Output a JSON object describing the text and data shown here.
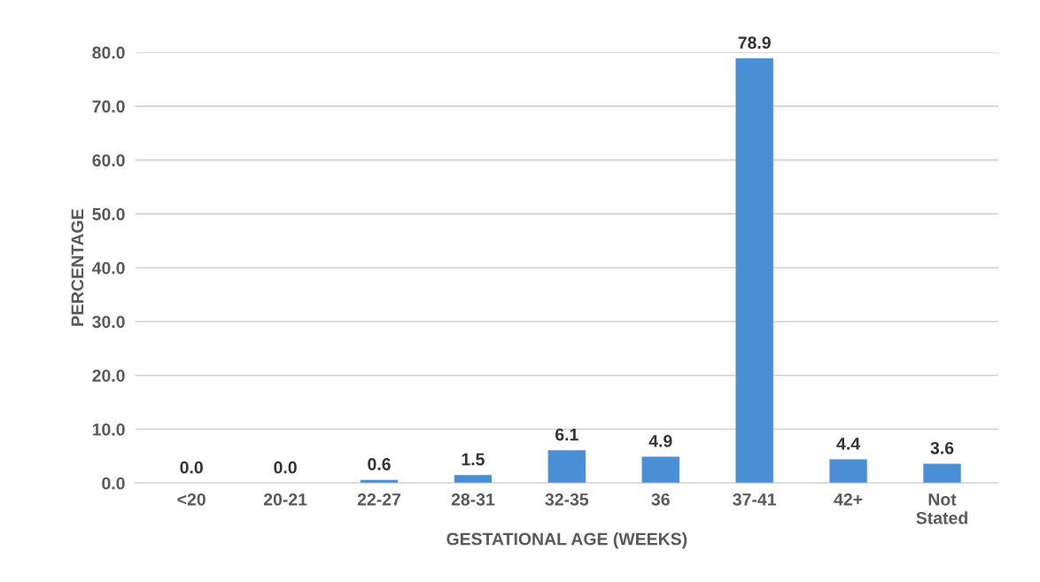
{
  "chart_data": {
    "type": "bar",
    "xlabel": "GESTATIONAL AGE (WEEKS)",
    "ylabel": "PERCENTAGE",
    "categories": [
      "<20",
      "20-21",
      "22-27",
      "28-31",
      "32-35",
      "36",
      "37-41",
      "42+",
      "Not\nStated"
    ],
    "values": [
      0.0,
      0.0,
      0.6,
      1.5,
      6.1,
      4.9,
      78.9,
      4.4,
      3.6
    ],
    "value_labels": [
      "0.0",
      "0.0",
      "0.6",
      "1.5",
      "6.1",
      "4.9",
      "78.9",
      "4.4",
      "3.6"
    ],
    "color": "#4a8fd6",
    "ylim": [
      0,
      80
    ],
    "yticks": [
      {
        "value": 0,
        "label": "0.0"
      },
      {
        "value": 10,
        "label": "10.0"
      },
      {
        "value": 20,
        "label": "20.0"
      },
      {
        "value": 30,
        "label": "30.0"
      },
      {
        "value": 40,
        "label": "40.0"
      },
      {
        "value": 50,
        "label": "50.0"
      },
      {
        "value": 60,
        "label": "60.0"
      },
      {
        "value": 70,
        "label": "70.0"
      },
      {
        "value": 80,
        "label": "80.0"
      }
    ],
    "grid": "y",
    "legend": false
  }
}
